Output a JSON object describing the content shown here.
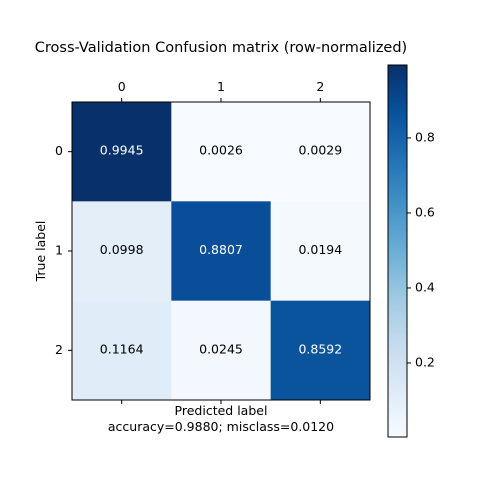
{
  "chart_data": {
    "type": "heatmap",
    "title": "Cross-Validation Confusion matrix (row-normalized)",
    "xlabel": "Predicted label",
    "ylabel": "True label",
    "footer": "accuracy=0.9880; misclass=0.0120",
    "x_categories": [
      "0",
      "1",
      "2"
    ],
    "y_categories": [
      "0",
      "1",
      "2"
    ],
    "matrix": [
      [
        0.9945,
        0.0026,
        0.0029
      ],
      [
        0.0998,
        0.8807,
        0.0194
      ],
      [
        0.1164,
        0.0245,
        0.8592
      ]
    ],
    "cell_labels": [
      [
        "0.9945",
        "0.0026",
        "0.0029"
      ],
      [
        "0.0998",
        "0.8807",
        "0.0194"
      ],
      [
        "0.1164",
        "0.0245",
        "0.8592"
      ]
    ],
    "colormap": "Blues",
    "color_range": [
      0.0026,
      0.9945
    ],
    "colorbar_ticks": [
      "0.2",
      "0.4",
      "0.6",
      "0.8"
    ],
    "colorbar_tick_values": [
      0.2,
      0.4,
      0.6,
      0.8
    ],
    "colors": {
      "low": "#f7fbff",
      "high": "#08306b"
    }
  }
}
